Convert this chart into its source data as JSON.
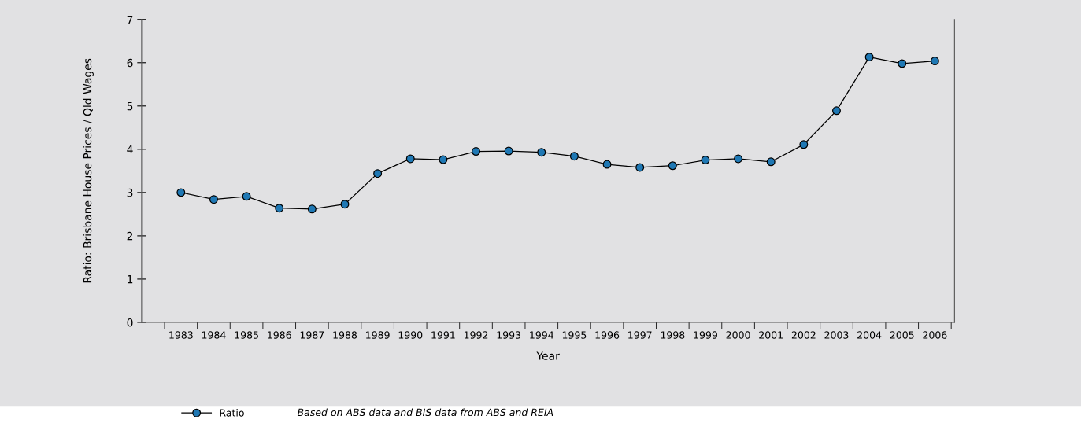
{
  "chart_data": {
    "type": "line",
    "xlabel": "Year",
    "ylabel": "Ratio: Brisbane House Prices / Qld Wages",
    "categories": [
      "1983",
      "1984",
      "1985",
      "1986",
      "1987",
      "1988",
      "1989",
      "1990",
      "1991",
      "1992",
      "1993",
      "1994",
      "1995",
      "1996",
      "1997",
      "1998",
      "1999",
      "2000",
      "2001",
      "2002",
      "2003",
      "2004",
      "2005",
      "2006"
    ],
    "series": [
      {
        "name": "Ratio",
        "color": "#1f78b4",
        "values": [
          3.0,
          2.84,
          2.91,
          2.64,
          2.62,
          2.73,
          3.44,
          3.78,
          3.76,
          3.95,
          3.96,
          3.93,
          3.84,
          3.65,
          3.58,
          3.62,
          3.75,
          3.78,
          3.71,
          4.11,
          4.89,
          6.13,
          5.98,
          6.04
        ]
      }
    ],
    "ylim": [
      0,
      7
    ],
    "yticks": [
      0,
      1,
      2,
      3,
      4,
      5,
      6,
      7
    ],
    "grid": false,
    "legend": "bottom left",
    "marker": "circle",
    "line_style": "solid",
    "annotations": [
      "Based on ABS data and BIS data from ABS and REIA"
    ]
  }
}
